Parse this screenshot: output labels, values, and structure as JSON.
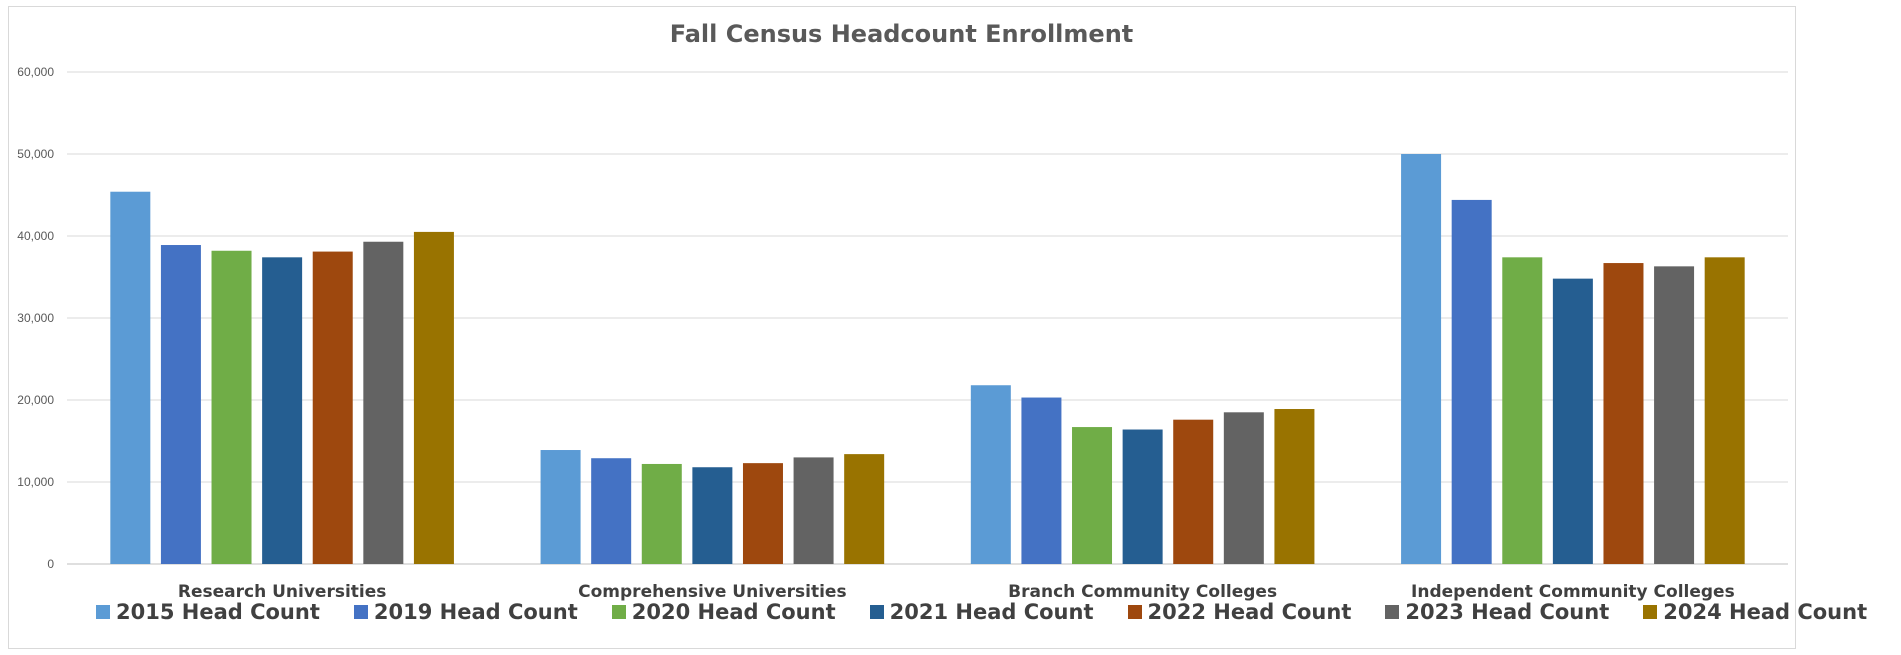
{
  "chart_data": {
    "type": "bar",
    "title": "Fall Census Headcount Enrollment",
    "categories": [
      "Research Universities",
      "Comprehensive Universities",
      "Branch Community Colleges",
      "Independent Community Colleges"
    ],
    "ylim": [
      0,
      60000
    ],
    "yticks": [
      "0",
      "10,000",
      "20,000",
      "30,000",
      "40,000",
      "50,000",
      "60,000"
    ],
    "grid": true,
    "legend_position": "bottom",
    "series": [
      {
        "name": "2015 Head Count",
        "color": "#5B9BD5",
        "values": [
          45400,
          13900,
          21800,
          50000
        ]
      },
      {
        "name": "2019 Head Count",
        "color": "#4472C4",
        "values": [
          38900,
          12900,
          20300,
          44400
        ]
      },
      {
        "name": "2020 Head Count",
        "color": "#70AD47",
        "values": [
          38200,
          12200,
          16700,
          37400
        ]
      },
      {
        "name": "2021 Head Count",
        "color": "#255E91",
        "values": [
          37400,
          11800,
          16400,
          34800
        ]
      },
      {
        "name": "2022 Head Count",
        "color": "#9E480E",
        "values": [
          38100,
          12300,
          17600,
          36700
        ]
      },
      {
        "name": "2023 Head Count",
        "color": "#636363",
        "values": [
          39300,
          13000,
          18500,
          36300
        ]
      },
      {
        "name": "2024 Head Count",
        "color": "#997300",
        "values": [
          40500,
          13400,
          18900,
          37400
        ]
      }
    ]
  }
}
